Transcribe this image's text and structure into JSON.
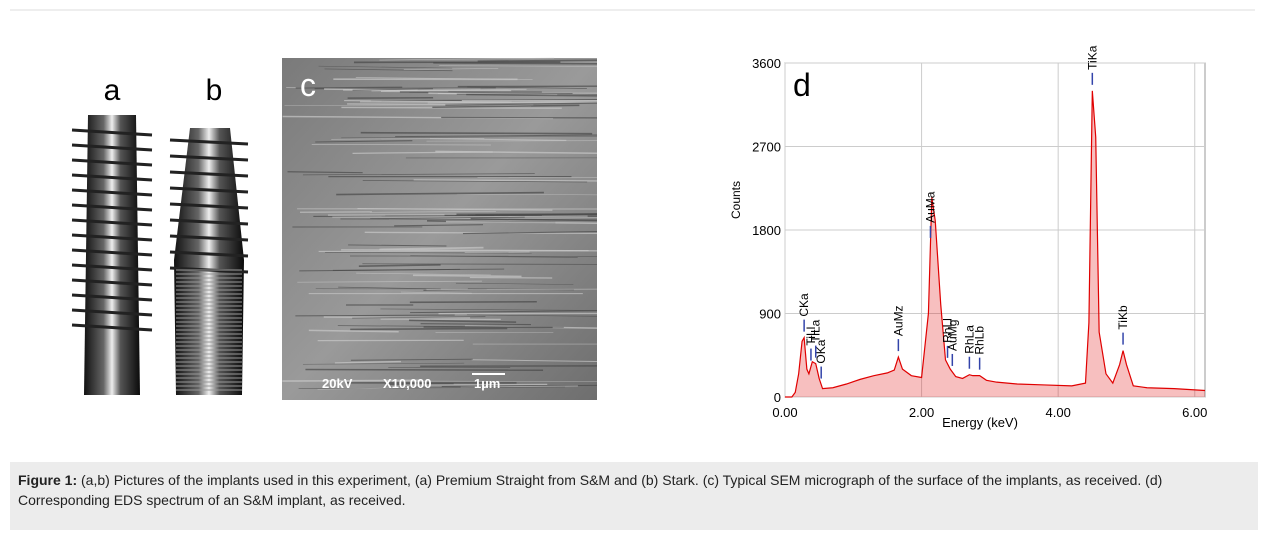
{
  "panels": [
    "a",
    "b",
    "c",
    "d"
  ],
  "sem_info": [
    "20kV",
    "X10,000",
    "1µm"
  ],
  "caption": {
    "label": "Figure 1:",
    "text": " (a,b) Pictures of the implants used in this experiment, (a) Premium Straight from S&M and (b) Stark. (c) Typical SEM micrograph of the surface of the implants, as received. (d) Corresponding EDS spectrum of an S&M implant, as received."
  },
  "chart_data": {
    "type": "area",
    "xlabel": "Energy (keV)",
    "ylabel": "Counts",
    "color": "#e00000",
    "x": [
      0.0,
      0.1,
      0.15,
      0.2,
      0.25,
      0.28,
      0.32,
      0.35,
      0.4,
      0.45,
      0.5,
      0.55,
      0.7,
      0.9,
      1.1,
      1.3,
      1.5,
      1.6,
      1.66,
      1.72,
      1.85,
      2.0,
      2.1,
      2.15,
      2.2,
      2.28,
      2.35,
      2.42,
      2.5,
      2.6,
      2.7,
      2.75,
      2.85,
      2.95,
      3.1,
      3.4,
      3.8,
      4.2,
      4.4,
      4.45,
      4.5,
      4.55,
      4.6,
      4.7,
      4.8,
      4.9,
      4.95,
      5.0,
      5.1,
      5.3,
      5.7,
      6.15
    ],
    "values": [
      0,
      0,
      50,
      250,
      600,
      640,
      300,
      250,
      380,
      360,
      200,
      90,
      100,
      140,
      190,
      230,
      260,
      290,
      430,
      300,
      230,
      210,
      900,
      2150,
      1900,
      1000,
      400,
      300,
      220,
      200,
      240,
      230,
      230,
      180,
      160,
      140,
      130,
      120,
      150,
      800,
      3300,
      2800,
      700,
      250,
      150,
      350,
      500,
      350,
      120,
      100,
      90,
      70
    ],
    "xlim": [
      0,
      6.15
    ],
    "ylim": [
      0,
      3600
    ],
    "xticks": [
      {
        "value": 0,
        "label": "0.00"
      },
      {
        "value": 2,
        "label": "2.00"
      },
      {
        "value": 4,
        "label": "4.00"
      },
      {
        "value": 6,
        "label": "6.00"
      }
    ],
    "yticks": [
      0,
      900,
      1800,
      2700,
      3600
    ],
    "grid": true,
    "annotations": [
      {
        "label": "CKa",
        "x": 0.28
      },
      {
        "label": "TiLl",
        "x": 0.38
      },
      {
        "label": "TiLa",
        "x": 0.45
      },
      {
        "label": "OKa",
        "x": 0.53
      },
      {
        "label": "AuMz",
        "x": 1.66
      },
      {
        "label": "AuMa",
        "x": 2.13
      },
      {
        "label": "RhLl",
        "x": 2.38
      },
      {
        "label": "AuMg",
        "x": 2.45
      },
      {
        "label": "RhLa",
        "x": 2.7
      },
      {
        "label": "RhLb",
        "x": 2.85
      },
      {
        "label": "TiKa",
        "x": 4.5
      },
      {
        "label": "TiKb",
        "x": 4.95
      }
    ]
  }
}
